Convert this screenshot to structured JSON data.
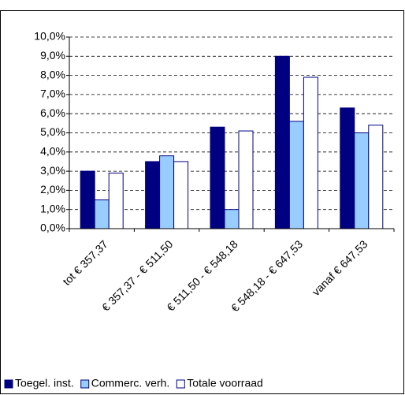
{
  "chart_data": {
    "type": "bar",
    "categories": [
      "tot € 357,37",
      "€ 357,37 - € 511,50",
      "€ 511,50 - € 548,18",
      "€ 548,18 - € 647,53",
      "vanaf € 647,53"
    ],
    "series": [
      {
        "name": "Toegel. inst.",
        "color": "#000080",
        "values": [
          3.0,
          3.5,
          5.3,
          9.0,
          6.3
        ]
      },
      {
        "name": "Commerc. verh.",
        "color": "#99ccff",
        "values": [
          1.5,
          3.8,
          1.0,
          5.6,
          5.0
        ]
      },
      {
        "name": "Totale voorraad",
        "color": "#ffffff",
        "values": [
          2.9,
          3.5,
          5.1,
          7.9,
          5.4
        ]
      }
    ],
    "ylim": [
      0,
      10
    ],
    "yticks": [
      {
        "value": 0,
        "label": "0,0%"
      },
      {
        "value": 1,
        "label": "1,0%"
      },
      {
        "value": 2,
        "label": "2,0%"
      },
      {
        "value": 3,
        "label": "3,0%"
      },
      {
        "value": 4,
        "label": "4,0%"
      },
      {
        "value": 5,
        "label": "5,0%"
      },
      {
        "value": 6,
        "label": "6,0%"
      },
      {
        "value": 7,
        "label": "7,0%"
      },
      {
        "value": 8,
        "label": "8,0%"
      },
      {
        "value": 9,
        "label": "9,0%"
      },
      {
        "value": 10,
        "label": "10,0%"
      }
    ],
    "grid": true,
    "legend": "bottom"
  }
}
